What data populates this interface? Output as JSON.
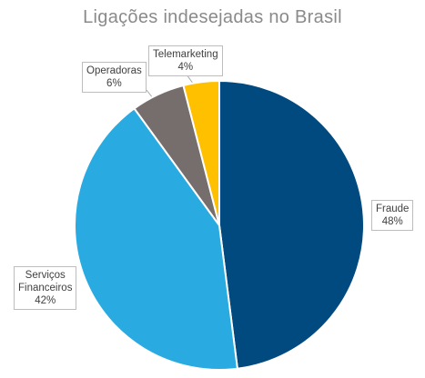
{
  "chart_data": {
    "type": "pie",
    "title": "Ligações indesejadas no Brasil",
    "slices": [
      {
        "label": "Fraude",
        "value": 48,
        "display": "48%",
        "color": "#004A80"
      },
      {
        "label": "Serviços Financeiros",
        "label_lines": [
          "Serviços",
          "Financeiros"
        ],
        "value": 42,
        "display": "42%",
        "color": "#29ABE2"
      },
      {
        "label": "Operadoras",
        "value": 6,
        "display": "6%",
        "color": "#766E6C"
      },
      {
        "label": "Telemarketing",
        "value": 4,
        "display": "4%",
        "color": "#FFC000"
      }
    ]
  }
}
